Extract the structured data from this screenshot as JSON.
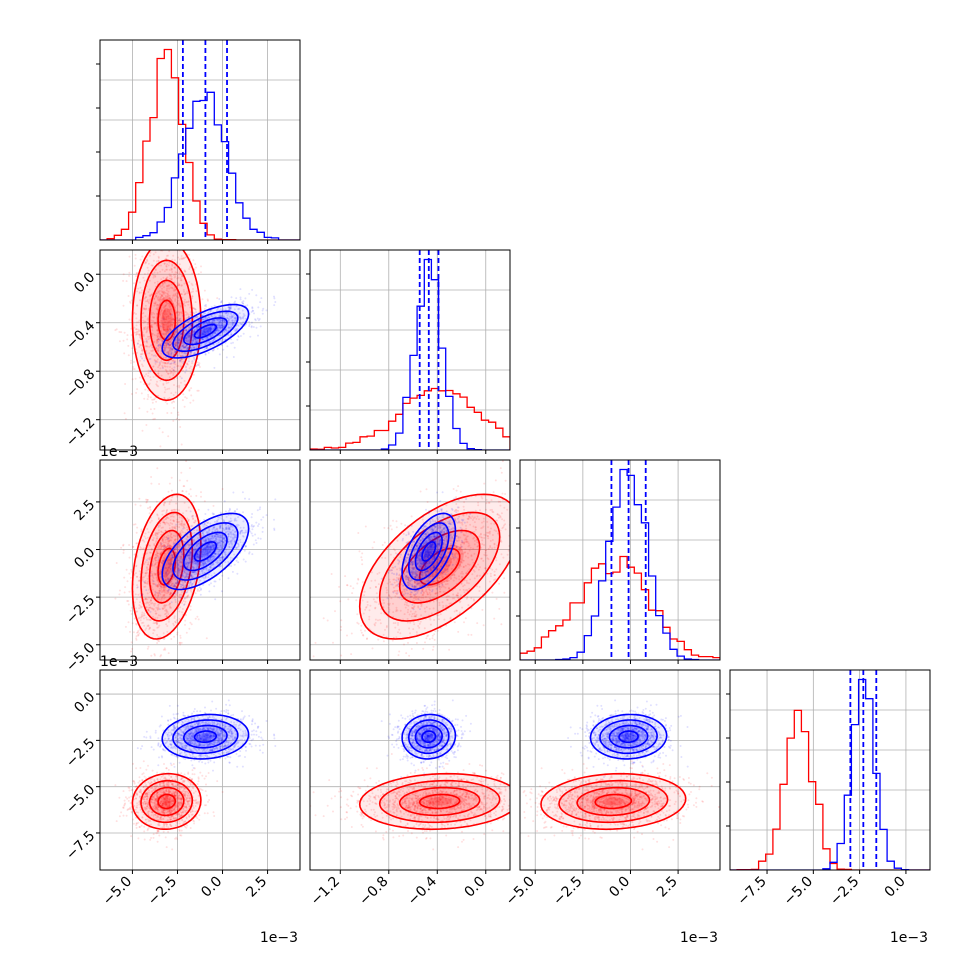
{
  "colors": {
    "red": "#ff0000",
    "blue": "#0000ff",
    "grid": "#b0b0b0",
    "frame": "#000000"
  },
  "chart_data": {
    "type": "corner",
    "grid": true,
    "params": [
      {
        "name": "",
        "xlim": [
          -0.0068,
          0.0043
        ]
      },
      {
        "name": "",
        "xlim": [
          -1.45,
          0.2
        ]
      },
      {
        "name": "",
        "xlim": [
          -0.0058,
          0.0047
        ]
      },
      {
        "name": "",
        "xlim": [
          -0.0095,
          0.0013
        ]
      }
    ],
    "offset_labels": {
      "x": [
        "1e−3",
        "",
        "1e−3",
        "1e−3"
      ],
      "y": [
        "",
        "1e−3",
        "1e−3"
      ]
    },
    "tick_labels": {
      "p0": [
        "−5.0",
        "−2.5",
        "0.0",
        "2.5"
      ],
      "p1": [
        "−1.2",
        "−0.8",
        "−0.4",
        "0.0"
      ],
      "p2": [
        "−5.0",
        "−2.5",
        "0.0",
        "2.5"
      ],
      "p3": [
        "−7.5",
        "−5.0",
        "−2.5",
        "0.0"
      ]
    },
    "tick_values": {
      "p0": [
        -0.005,
        -0.0025,
        0.0,
        0.0025
      ],
      "p1": [
        -1.2,
        -0.8,
        -0.4,
        0.0
      ],
      "p2": [
        -0.005,
        -0.0025,
        0.0,
        0.0025
      ],
      "p3": [
        -0.0075,
        -0.005,
        -0.0025,
        0.0
      ]
    },
    "series": [
      {
        "color": "red",
        "mean": [
          -0.0031,
          -0.38,
          -0.0009,
          -0.0058
        ],
        "sd": [
          0.00095,
          0.33,
          0.0019,
          0.00075
        ],
        "corr": [
          [
            1,
            0,
            0.3,
            0.05
          ],
          [
            0,
            1,
            0.55,
            0.1
          ],
          [
            0.3,
            0.55,
            1,
            0.1
          ],
          [
            0.05,
            0.1,
            0.1,
            1
          ]
        ],
        "quantiles": null
      },
      {
        "color": "blue",
        "mean": [
          -0.00095,
          -0.47,
          -0.0001,
          -0.0023
        ],
        "sd": [
          0.0012,
          0.11,
          0.001,
          0.0006
        ],
        "corr": [
          [
            1,
            0.65,
            0.6,
            0.1
          ],
          [
            0.65,
            1,
            0.55,
            0.05
          ],
          [
            0.6,
            0.55,
            1,
            0.05
          ],
          [
            0.1,
            0.05,
            0.05,
            1
          ]
        ],
        "quantiles": [
          [
            -0.0022,
            -0.00095,
            0.00025
          ],
          [
            -0.545,
            -0.47,
            -0.39
          ],
          [
            -0.001,
            -0.0001,
            0.0008
          ],
          [
            -0.003,
            -0.0023,
            -0.0016
          ]
        ]
      }
    ]
  }
}
